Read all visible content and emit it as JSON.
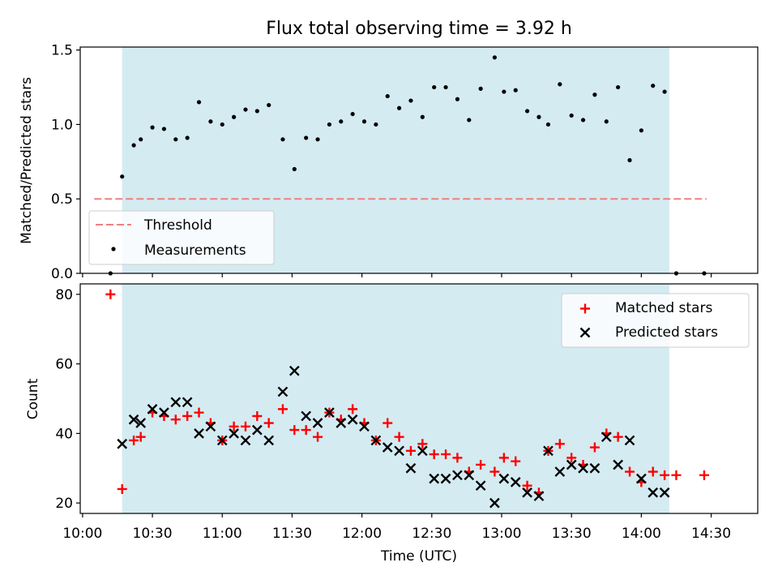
{
  "title": "Flux total observing time = 3.92 h",
  "colors": {
    "shade": "#d4ebf2",
    "threshold": "#f08080",
    "measurement": "#000000",
    "matched": "#ff0000",
    "predicted": "#000000"
  },
  "chart_data": [
    {
      "type": "scatter",
      "panel": "top",
      "ylabel": "Matched/Predicted stars",
      "ylim": [
        0,
        1.52
      ],
      "yticks": [
        0.0,
        0.5,
        1.0,
        1.5
      ],
      "ytick_labels": [
        "0.0",
        "0.5",
        "1.0",
        "1.5"
      ],
      "shaded_interval": [
        "10:17",
        "14:12"
      ],
      "threshold": {
        "name": "Threshold",
        "y": 0.5,
        "x": [
          "10:05",
          "14:28"
        ]
      },
      "legend": {
        "position": "lower-left",
        "entries": [
          "Threshold",
          "Measurements"
        ]
      },
      "series": [
        {
          "name": "Measurements",
          "x": [
            "10:12",
            "10:17",
            "10:22",
            "10:25",
            "10:30",
            "10:35",
            "10:40",
            "10:45",
            "10:50",
            "10:55",
            "11:00",
            "11:05",
            "11:10",
            "11:15",
            "11:20",
            "11:26",
            "11:31",
            "11:36",
            "11:41",
            "11:46",
            "11:51",
            "11:56",
            "12:01",
            "12:06",
            "12:11",
            "12:16",
            "12:21",
            "12:26",
            "12:31",
            "12:36",
            "12:41",
            "12:46",
            "12:51",
            "12:57",
            "13:01",
            "13:06",
            "13:11",
            "13:16",
            "13:20",
            "13:25",
            "13:30",
            "13:35",
            "13:40",
            "13:45",
            "13:50",
            "13:55",
            "14:00",
            "14:05",
            "14:10",
            "14:15",
            "14:27"
          ],
          "y": [
            0.0,
            0.65,
            0.86,
            0.9,
            0.98,
            0.97,
            0.9,
            0.91,
            1.15,
            1.02,
            1.0,
            1.05,
            1.1,
            1.09,
            1.13,
            0.9,
            0.7,
            0.91,
            0.9,
            1.0,
            1.02,
            1.07,
            1.02,
            1.0,
            1.19,
            1.11,
            1.16,
            1.05,
            1.25,
            1.25,
            1.17,
            1.03,
            1.24,
            1.45,
            1.22,
            1.23,
            1.09,
            1.05,
            1.0,
            1.27,
            1.06,
            1.03,
            1.2,
            1.02,
            1.25,
            0.76,
            0.96,
            1.26,
            1.22,
            0.0,
            0.0
          ]
        }
      ]
    },
    {
      "type": "scatter",
      "panel": "bottom",
      "xlabel": "Time (UTC)",
      "ylabel": "Count",
      "ylim": [
        17,
        83
      ],
      "yticks": [
        20,
        40,
        60,
        80
      ],
      "ytick_labels": [
        "20",
        "40",
        "60",
        "80"
      ],
      "xlim": [
        "09:59",
        "14:50"
      ],
      "xticks": [
        "10:00",
        "10:30",
        "11:00",
        "11:30",
        "12:00",
        "12:30",
        "13:00",
        "13:30",
        "14:00",
        "14:30"
      ],
      "shaded_interval": [
        "10:17",
        "14:12"
      ],
      "legend": {
        "position": "top-right",
        "entries": [
          "Matched stars",
          "Predicted stars"
        ]
      },
      "series": [
        {
          "name": "Matched stars",
          "marker": "plus",
          "x": [
            "10:12",
            "10:17",
            "10:22",
            "10:25",
            "10:30",
            "10:35",
            "10:40",
            "10:45",
            "10:50",
            "10:55",
            "11:00",
            "11:05",
            "11:10",
            "11:15",
            "11:20",
            "11:26",
            "11:31",
            "11:36",
            "11:41",
            "11:46",
            "11:51",
            "11:56",
            "12:01",
            "12:06",
            "12:11",
            "12:16",
            "12:21",
            "12:26",
            "12:31",
            "12:36",
            "12:41",
            "12:46",
            "12:51",
            "12:57",
            "13:01",
            "13:06",
            "13:11",
            "13:16",
            "13:20",
            "13:25",
            "13:30",
            "13:35",
            "13:40",
            "13:45",
            "13:50",
            "13:55",
            "14:00",
            "14:05",
            "14:10",
            "14:15",
            "14:27"
          ],
          "y": [
            80,
            24,
            38,
            39,
            46,
            45,
            44,
            45,
            46,
            43,
            38,
            42,
            42,
            45,
            43,
            47,
            41,
            41,
            39,
            46,
            44,
            47,
            43,
            38,
            43,
            39,
            35,
            37,
            34,
            34,
            33,
            29,
            31,
            29,
            33,
            32,
            25,
            23,
            35,
            37,
            33,
            31,
            36,
            40,
            39,
            29,
            26,
            29,
            28,
            28,
            28
          ]
        },
        {
          "name": "Predicted stars",
          "marker": "x",
          "x": [
            "10:17",
            "10:22",
            "10:25",
            "10:30",
            "10:35",
            "10:40",
            "10:45",
            "10:50",
            "10:55",
            "11:00",
            "11:05",
            "11:10",
            "11:15",
            "11:20",
            "11:26",
            "11:31",
            "11:36",
            "11:41",
            "11:46",
            "11:51",
            "11:56",
            "12:01",
            "12:06",
            "12:11",
            "12:16",
            "12:21",
            "12:26",
            "12:31",
            "12:36",
            "12:41",
            "12:46",
            "12:51",
            "12:57",
            "13:01",
            "13:06",
            "13:11",
            "13:16",
            "13:20",
            "13:25",
            "13:30",
            "13:35",
            "13:40",
            "13:45",
            "13:50",
            "13:55",
            "14:00",
            "14:05",
            "14:10"
          ],
          "y": [
            37,
            44,
            43,
            47,
            46,
            49,
            49,
            40,
            42,
            38,
            40,
            38,
            41,
            38,
            52,
            58,
            45,
            43,
            46,
            43,
            44,
            42,
            38,
            36,
            35,
            30,
            35,
            27,
            27,
            28,
            28,
            25,
            20,
            27,
            26,
            23,
            22,
            35,
            29,
            31,
            30,
            30,
            39,
            31,
            38,
            27,
            23,
            23
          ]
        }
      ]
    }
  ]
}
